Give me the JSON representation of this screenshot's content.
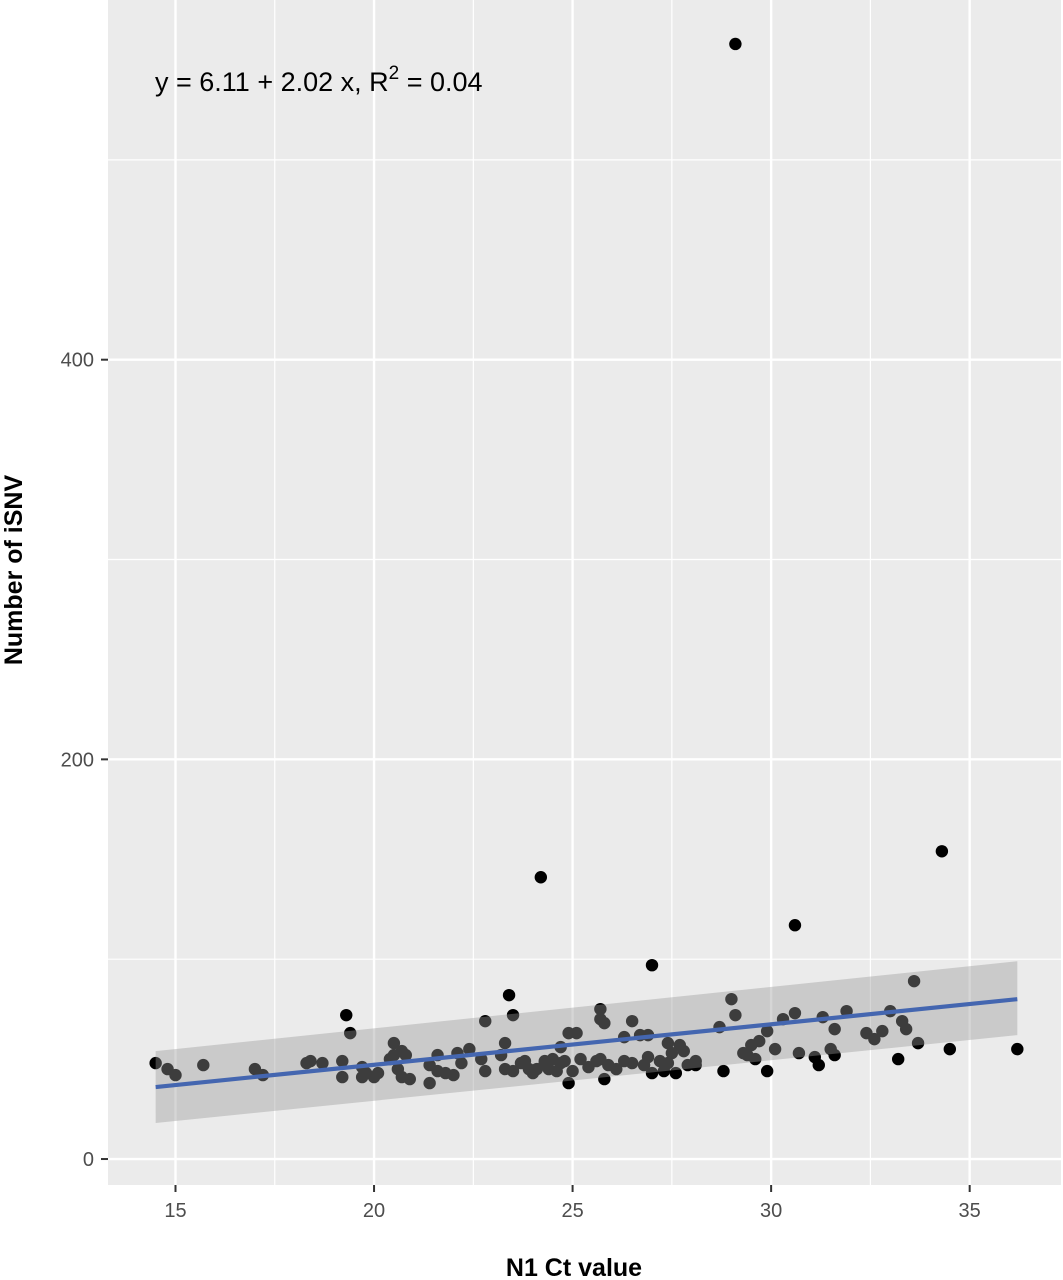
{
  "chart_data": {
    "type": "scatter",
    "title": "",
    "xlabel": "N1 Ct value",
    "ylabel": "Number of iSNV",
    "xlim": [
      13.3,
      37.3
    ],
    "ylim": [
      -13,
      580
    ],
    "x_ticks": [
      15,
      20,
      25,
      30,
      35
    ],
    "y_ticks": [
      0,
      200,
      400
    ],
    "x_tick_labels": [
      "15",
      "20",
      "25",
      "30",
      "35"
    ],
    "y_tick_labels": [
      "0",
      "200",
      "400"
    ],
    "grid": true,
    "background": "#ebebeb",
    "grid_color": "#ffffff",
    "point_color": "#000000",
    "fit_color": "#4466b0",
    "band_color": "#bdbdbd",
    "annotation": {
      "prefix": "y = 6.11 + 2.02 x, R",
      "superscript": "2",
      "suffix": " = 0.04"
    },
    "fit": {
      "x": [
        14.5,
        36.2
      ],
      "y": [
        36,
        80
      ],
      "ci_lower": [
        18,
        62
      ],
      "ci_upper": [
        54,
        99
      ]
    },
    "series": [
      {
        "points": [
          [
            14.5,
            48
          ],
          [
            14.8,
            45
          ],
          [
            15.0,
            42
          ],
          [
            15.7,
            47
          ],
          [
            17.0,
            45
          ],
          [
            17.2,
            42
          ],
          [
            18.3,
            48
          ],
          [
            18.4,
            49
          ],
          [
            18.7,
            48
          ],
          [
            19.2,
            49
          ],
          [
            19.2,
            41
          ],
          [
            19.3,
            72
          ],
          [
            19.4,
            63
          ],
          [
            19.7,
            46
          ],
          [
            19.7,
            41
          ],
          [
            19.8,
            43
          ],
          [
            20.0,
            41
          ],
          [
            20.1,
            43
          ],
          [
            20.4,
            50
          ],
          [
            20.5,
            58
          ],
          [
            20.5,
            52
          ],
          [
            20.6,
            45
          ],
          [
            20.7,
            54
          ],
          [
            20.7,
            41
          ],
          [
            20.8,
            52
          ],
          [
            20.9,
            40
          ],
          [
            21.4,
            47
          ],
          [
            21.4,
            38
          ],
          [
            21.6,
            52
          ],
          [
            21.6,
            44
          ],
          [
            21.8,
            43
          ],
          [
            22.0,
            42
          ],
          [
            22.1,
            53
          ],
          [
            22.2,
            48
          ],
          [
            22.4,
            55
          ],
          [
            22.7,
            50
          ],
          [
            22.8,
            44
          ],
          [
            22.8,
            69
          ],
          [
            23.2,
            52
          ],
          [
            23.3,
            58
          ],
          [
            23.3,
            45
          ],
          [
            23.4,
            82
          ],
          [
            23.5,
            72
          ],
          [
            23.5,
            44
          ],
          [
            23.7,
            48
          ],
          [
            23.8,
            49
          ],
          [
            23.9,
            45
          ],
          [
            24.0,
            43
          ],
          [
            24.1,
            45
          ],
          [
            24.2,
            141
          ],
          [
            24.3,
            48
          ],
          [
            24.3,
            49
          ],
          [
            24.4,
            45
          ],
          [
            24.5,
            50
          ],
          [
            24.6,
            44
          ],
          [
            24.7,
            48
          ],
          [
            24.7,
            56
          ],
          [
            24.8,
            49
          ],
          [
            24.9,
            63
          ],
          [
            24.9,
            38
          ],
          [
            25.0,
            44
          ],
          [
            25.1,
            63
          ],
          [
            25.2,
            50
          ],
          [
            25.4,
            46
          ],
          [
            25.6,
            49
          ],
          [
            25.7,
            50
          ],
          [
            25.7,
            75
          ],
          [
            25.7,
            70
          ],
          [
            25.8,
            68
          ],
          [
            25.8,
            40
          ],
          [
            25.9,
            47
          ],
          [
            26.1,
            45
          ],
          [
            26.3,
            61
          ],
          [
            26.3,
            49
          ],
          [
            26.5,
            48
          ],
          [
            26.5,
            69
          ],
          [
            26.7,
            62
          ],
          [
            26.8,
            47
          ],
          [
            26.9,
            62
          ],
          [
            26.9,
            51
          ],
          [
            27.0,
            97
          ],
          [
            27.0,
            43
          ],
          [
            27.2,
            49
          ],
          [
            27.3,
            44
          ],
          [
            27.4,
            58
          ],
          [
            27.4,
            48
          ],
          [
            27.5,
            53
          ],
          [
            27.6,
            43
          ],
          [
            27.7,
            57
          ],
          [
            27.8,
            54
          ],
          [
            27.9,
            47
          ],
          [
            28.1,
            47
          ],
          [
            28.1,
            49
          ],
          [
            28.7,
            66
          ],
          [
            28.8,
            44
          ],
          [
            29.0,
            80
          ],
          [
            29.1,
            72
          ],
          [
            29.3,
            53
          ],
          [
            29.4,
            52
          ],
          [
            29.5,
            57
          ],
          [
            29.6,
            50
          ],
          [
            29.7,
            59
          ],
          [
            29.9,
            64
          ],
          [
            29.9,
            44
          ],
          [
            30.1,
            55
          ],
          [
            30.3,
            70
          ],
          [
            30.6,
            73
          ],
          [
            30.7,
            53
          ],
          [
            30.6,
            117
          ],
          [
            31.1,
            51
          ],
          [
            31.2,
            47
          ],
          [
            31.3,
            71
          ],
          [
            31.5,
            55
          ],
          [
            31.6,
            65
          ],
          [
            31.6,
            52
          ],
          [
            31.9,
            74
          ],
          [
            32.4,
            63
          ],
          [
            32.6,
            60
          ],
          [
            32.8,
            64
          ],
          [
            33.0,
            74
          ],
          [
            33.2,
            50
          ],
          [
            33.3,
            69
          ],
          [
            33.4,
            65
          ],
          [
            33.6,
            89
          ],
          [
            33.7,
            58
          ],
          [
            34.3,
            154
          ],
          [
            34.5,
            55
          ],
          [
            36.2,
            55
          ],
          [
            29.1,
            558
          ]
        ]
      }
    ]
  }
}
